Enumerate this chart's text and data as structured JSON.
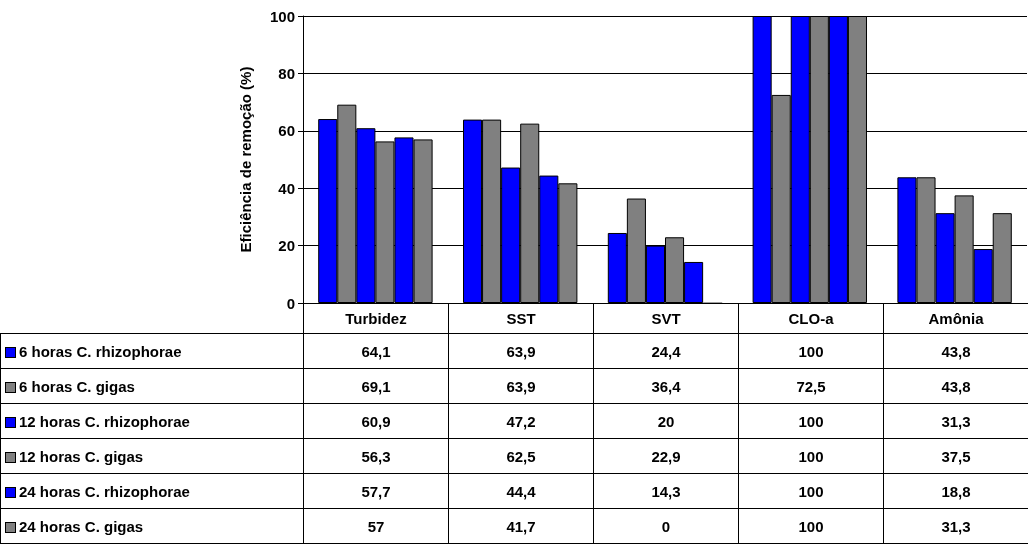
{
  "chart_data": {
    "type": "bar",
    "ylabel": "Eficiência de remoção (%)",
    "categories": [
      "Turbidez",
      "SST",
      "SVT",
      "CLO-a",
      "Amônia"
    ],
    "series": [
      {
        "name": "6 horas C. rhizophorae",
        "color": "#0000ff",
        "values": [
          64.1,
          63.9,
          24.4,
          100,
          43.8
        ],
        "value_labels": [
          "64,1",
          "63,9",
          "24,4",
          "100",
          "43,8"
        ]
      },
      {
        "name": "6 horas C. gigas",
        "color": "#808080",
        "values": [
          69.1,
          63.9,
          36.4,
          72.5,
          43.8
        ],
        "value_labels": [
          "69,1",
          "63,9",
          "36,4",
          "72,5",
          "43,8"
        ]
      },
      {
        "name": "12 horas C. rhizophorae",
        "color": "#0000ff",
        "values": [
          60.9,
          47.2,
          20,
          100,
          31.3
        ],
        "value_labels": [
          "60,9",
          "47,2",
          "20",
          "100",
          "31,3"
        ]
      },
      {
        "name": "12 horas C. gigas",
        "color": "#808080",
        "values": [
          56.3,
          62.5,
          22.9,
          100,
          37.5
        ],
        "value_labels": [
          "56,3",
          "62,5",
          "22,9",
          "100",
          "37,5"
        ]
      },
      {
        "name": "24 horas C. rhizophorae",
        "color": "#0000ff",
        "values": [
          57.7,
          44.4,
          14.3,
          100,
          18.8
        ],
        "value_labels": [
          "57,7",
          "44,4",
          "14,3",
          "100",
          "18,8"
        ]
      },
      {
        "name": "24 horas C. gigas",
        "color": "#808080",
        "values": [
          57,
          41.7,
          0,
          100,
          31.3
        ],
        "value_labels": [
          "57",
          "41,7",
          "0",
          "100",
          "31,3"
        ]
      }
    ],
    "ylim": [
      0,
      100
    ],
    "yticks": [
      0,
      20,
      40,
      60,
      80,
      100
    ],
    "grid": "y",
    "legend": "bottom left"
  }
}
